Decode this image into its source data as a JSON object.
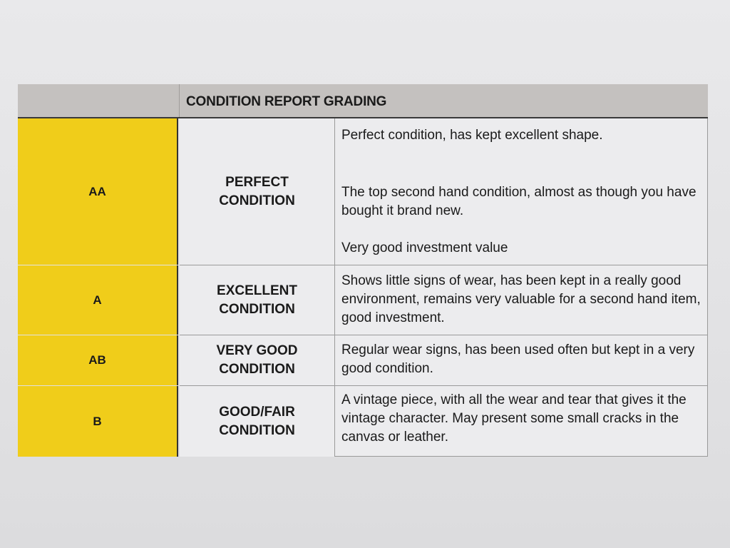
{
  "table": {
    "title": "CONDITION REPORT GRADING",
    "colors": {
      "grade_fill": "#f0cd1a",
      "header_fill": "#c4c1bf"
    },
    "rows": [
      {
        "grade": "AA",
        "condition_line1": "PERFECT",
        "condition_line2": "CONDITION",
        "description": [
          "Perfect condition, has kept excellent shape.",
          "The top second hand condition, almost as though you have bought it brand new.",
          "Very good investment value"
        ]
      },
      {
        "grade": "A",
        "condition_line1": "EXCELLENT",
        "condition_line2": "CONDITION",
        "description": [
          "Shows little signs of wear, has been kept in a really good environment, remains very valuable for a second hand item, good investment."
        ]
      },
      {
        "grade": "AB",
        "condition_line1": "VERY GOOD",
        "condition_line2": "CONDITION",
        "description": [
          "Regular wear signs, has been used often but kept in a very good condition."
        ]
      },
      {
        "grade": "B",
        "condition_line1": "GOOD/FAIR",
        "condition_line2": "CONDITION",
        "description": [
          "A vintage piece, with all the wear and tear that gives it the vintage character. May present some small cracks in the canvas or leather."
        ]
      }
    ]
  }
}
